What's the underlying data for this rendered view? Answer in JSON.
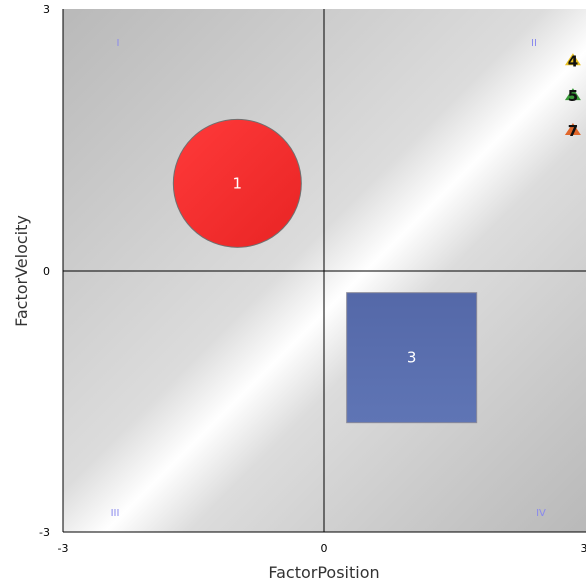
{
  "chart_data": {
    "type": "scatter",
    "title": "",
    "xlabel": "FactorPosition",
    "ylabel": "FactorVelocity",
    "xlim": [
      -3,
      3
    ],
    "ylim": [
      -3,
      3
    ],
    "x_ticks": [
      "-3",
      "0",
      "3"
    ],
    "y_ticks": [
      "-3",
      "0",
      "3"
    ],
    "grid": false,
    "quadrant_labels": {
      "top_left": "I",
      "top_right": "II",
      "bottom_left": "III",
      "bottom_right": "IV"
    },
    "points": [
      {
        "label": "1",
        "shape": "circle",
        "x": -1.0,
        "y": 1.0,
        "color": "#f02b2b"
      },
      {
        "label": "3",
        "shape": "square",
        "x": 1.0,
        "y": -1.0,
        "color": "#5a6fad"
      },
      {
        "label": "4",
        "shape": "triangle",
        "x": 2.85,
        "y": 2.4,
        "color": "#e8c020"
      },
      {
        "label": "5",
        "shape": "triangle",
        "x": 2.85,
        "y": 2.0,
        "color": "#3a9a3a"
      },
      {
        "label": "7",
        "shape": "triangle",
        "x": 2.85,
        "y": 1.6,
        "color": "#e0662a"
      }
    ]
  }
}
